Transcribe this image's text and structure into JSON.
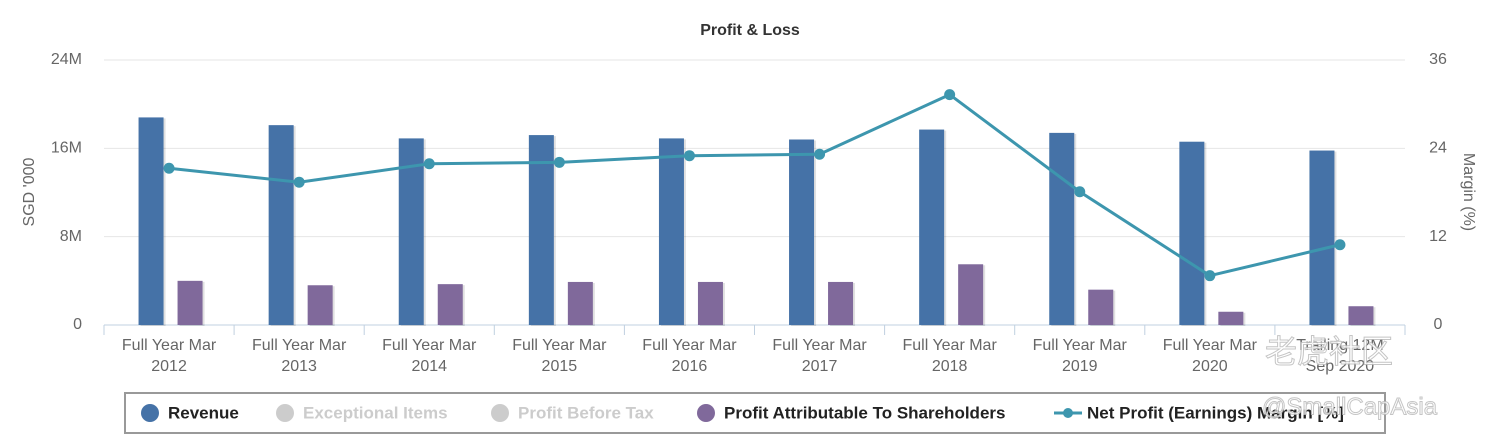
{
  "chart_data": {
    "type": "bar-line",
    "title": "Profit & Loss",
    "ylabel": "SGD '000",
    "y2label": "Margin (%)",
    "categories": [
      "Full Year Mar 2012",
      "Full Year Mar 2013",
      "Full Year Mar 2014",
      "Full Year Mar 2015",
      "Full Year Mar 2016",
      "Full Year Mar 2017",
      "Full Year Mar 2018",
      "Full Year Mar 2019",
      "Full Year Mar 2020",
      "Trailing 12M Sep 2020"
    ],
    "ylim": [
      0,
      24000000
    ],
    "yticks": [
      0,
      {
        "value": 8000000,
        "label": "8M"
      },
      {
        "value": 16000000,
        "label": "16M"
      },
      {
        "value": 24000000,
        "label": "24M"
      }
    ],
    "y2lim": [
      0,
      36
    ],
    "y2ticks": [
      0,
      12,
      24,
      36
    ],
    "grid": true,
    "legend": "bottom",
    "series": [
      {
        "name": "Revenue",
        "color": "#4572a7",
        "kind": "bar",
        "visible": true,
        "values": [
          18800000,
          18100000,
          16900000,
          17200000,
          16900000,
          16800000,
          17700000,
          17400000,
          16600000,
          15800000
        ]
      },
      {
        "name": "Exceptional Items",
        "color": "#cccccc",
        "kind": "bar",
        "visible": false,
        "values": [
          null,
          null,
          null,
          null,
          null,
          null,
          null,
          null,
          null,
          null
        ]
      },
      {
        "name": "Profit Before Tax",
        "color": "#cccccc",
        "kind": "bar",
        "visible": false,
        "values": [
          null,
          null,
          null,
          null,
          null,
          null,
          null,
          null,
          null,
          null
        ]
      },
      {
        "name": "Profit Attributable To Shareholders",
        "color": "#80699b",
        "kind": "bar",
        "visible": true,
        "values": [
          4000000,
          3600000,
          3700000,
          3900000,
          3900000,
          3900000,
          5500000,
          3200000,
          1200000,
          1700000
        ]
      },
      {
        "name": "Net Profit (Earnings) Margin [%]",
        "color": "#3d96ae",
        "kind": "line",
        "axis": "y2",
        "visible": true,
        "values": [
          21.3,
          19.4,
          21.9,
          22.1,
          23.0,
          23.2,
          31.3,
          18.1,
          6.7,
          10.9
        ]
      }
    ],
    "watermark": [
      "老虎社区",
      "@SmallCapAsia"
    ]
  }
}
